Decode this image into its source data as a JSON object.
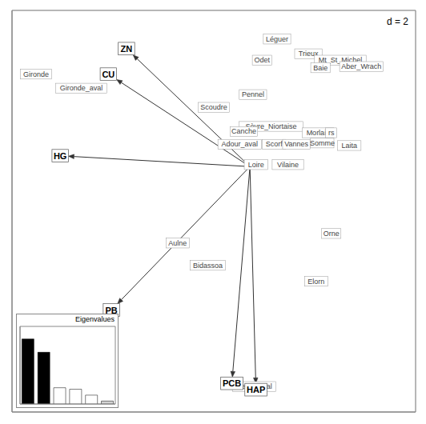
{
  "chart_data": [
    {
      "type": "biplot",
      "title": "d = 2",
      "xlim": [
        -3.5,
        3.2
      ],
      "ylim": [
        -3.8,
        2.5
      ],
      "xticks": [
        -3,
        -2,
        -1,
        0,
        1,
        2,
        3
      ],
      "yticks": [
        -3,
        -2,
        -1,
        0,
        1,
        2
      ],
      "grid": true,
      "tick_labels": false,
      "arrow_origin": {
        "x": 0.45,
        "y": 0.05
      },
      "variables": [
        {
          "name": "ZN",
          "x": -1.6,
          "y": 1.9
        },
        {
          "name": "CU",
          "x": -1.9,
          "y": 1.5
        },
        {
          "name": "HG",
          "x": -2.7,
          "y": 0.22
        },
        {
          "name": "PB",
          "x": -1.85,
          "y": -2.2
        },
        {
          "name": "HAP",
          "x": 0.55,
          "y": -3.45
        },
        {
          "name": "PCB",
          "x": 0.15,
          "y": -3.35
        }
      ],
      "sites": [
        {
          "name": "Gironde",
          "x": -3.1,
          "y": 1.5
        },
        {
          "name": "Gironde_aval",
          "x": -2.35,
          "y": 1.28
        },
        {
          "name": "Léguer",
          "x": 0.9,
          "y": 2.05
        },
        {
          "name": "Odet",
          "x": 0.65,
          "y": 1.72
        },
        {
          "name": "Trieux",
          "x": 1.42,
          "y": 1.82
        },
        {
          "name": "Mt_St_Michel",
          "x": 1.95,
          "y": 1.72
        },
        {
          "name": "Baie",
          "x": 1.62,
          "y": 1.6
        },
        {
          "name": "Aber_Wrach",
          "x": 2.3,
          "y": 1.62
        },
        {
          "name": "Sèvre_Niortaise",
          "x": 0.8,
          "y": 0.68
        },
        {
          "name": "Scorf",
          "x": 0.85,
          "y": 0.4
        },
        {
          "name": "Vannes",
          "x": 1.22,
          "y": 0.4
        },
        {
          "name": "Somme",
          "x": 1.65,
          "y": 0.42
        },
        {
          "name": "Morlaix",
          "x": 1.58,
          "y": 0.58
        },
        {
          "name": "Laita",
          "x": 2.1,
          "y": 0.38
        },
        {
          "name": "Loire",
          "x": 0.55,
          "y": 0.08
        },
        {
          "name": "Vilaine",
          "x": 1.08,
          "y": 0.08
        },
        {
          "name": "Adour_aval",
          "x": 0.28,
          "y": 0.4
        },
        {
          "name": "Orne",
          "x": 1.8,
          "y": -1.0
        },
        {
          "name": "Elorn",
          "x": 1.55,
          "y": -1.75
        },
        {
          "name": "Aulne",
          "x": -0.75,
          "y": -1.15
        },
        {
          "name": "Bidassoa",
          "x": -0.25,
          "y": -1.5
        },
        {
          "name": "Scoudre",
          "x": -0.15,
          "y": 0.98
        },
        {
          "name": "Seine_aval",
          "x": 0.52,
          "y": -3.4
        },
        {
          "name": "Pennel",
          "x": 0.5,
          "y": 1.18
        },
        {
          "name": "Canche",
          "x": 0.35,
          "y": 0.6
        },
        {
          "name": "rs",
          "x": 1.8,
          "y": 0.58
        }
      ]
    },
    {
      "type": "bar",
      "title": "Eigenvalues",
      "values": [
        0.88,
        0.7,
        0.22,
        0.2,
        0.12,
        0.04
      ],
      "colors": [
        "black",
        "black",
        "white",
        "white",
        "white",
        "lightgray"
      ],
      "ylim": [
        0,
        1.05
      ],
      "tick_labels": false
    }
  ]
}
